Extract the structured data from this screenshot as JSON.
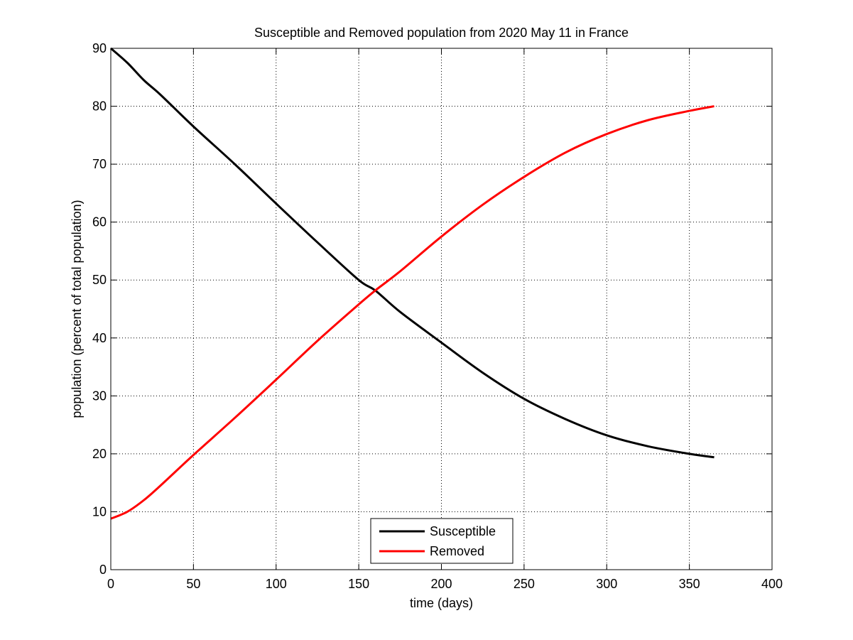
{
  "chart_data": {
    "type": "line",
    "title": "Susceptible and Removed population from 2020 May 11 in France",
    "xlabel": "time (days)",
    "ylabel": "population (percent of total population)",
    "xlim": [
      0,
      400
    ],
    "ylim": [
      0,
      90
    ],
    "xticks": [
      0,
      50,
      100,
      150,
      200,
      250,
      300,
      350,
      400
    ],
    "yticks": [
      0,
      10,
      20,
      30,
      40,
      50,
      60,
      70,
      80,
      90
    ],
    "grid": true,
    "legend_position": "bottom-center",
    "series": [
      {
        "name": "Susceptible",
        "color": "#000000",
        "x": [
          0,
          10,
          20,
          30,
          50,
          75,
          100,
          125,
          150,
          160,
          175,
          200,
          225,
          250,
          275,
          300,
          325,
          350,
          365
        ],
        "y": [
          90,
          87.5,
          84.5,
          82,
          76.5,
          70,
          63.2,
          56.5,
          50,
          48.2,
          44.5,
          39.2,
          34,
          29.5,
          26,
          23.2,
          21.3,
          20,
          19.4
        ]
      },
      {
        "name": "Removed",
        "color": "#ff0000",
        "x": [
          0,
          10,
          20,
          30,
          50,
          75,
          100,
          125,
          150,
          160,
          175,
          200,
          225,
          250,
          275,
          300,
          325,
          350,
          365
        ],
        "y": [
          8.8,
          10,
          12,
          14.5,
          19.8,
          26.2,
          32.8,
          39.5,
          45.8,
          48.2,
          51.5,
          57.5,
          63,
          67.8,
          72,
          75.2,
          77.6,
          79.2,
          80
        ]
      }
    ]
  }
}
